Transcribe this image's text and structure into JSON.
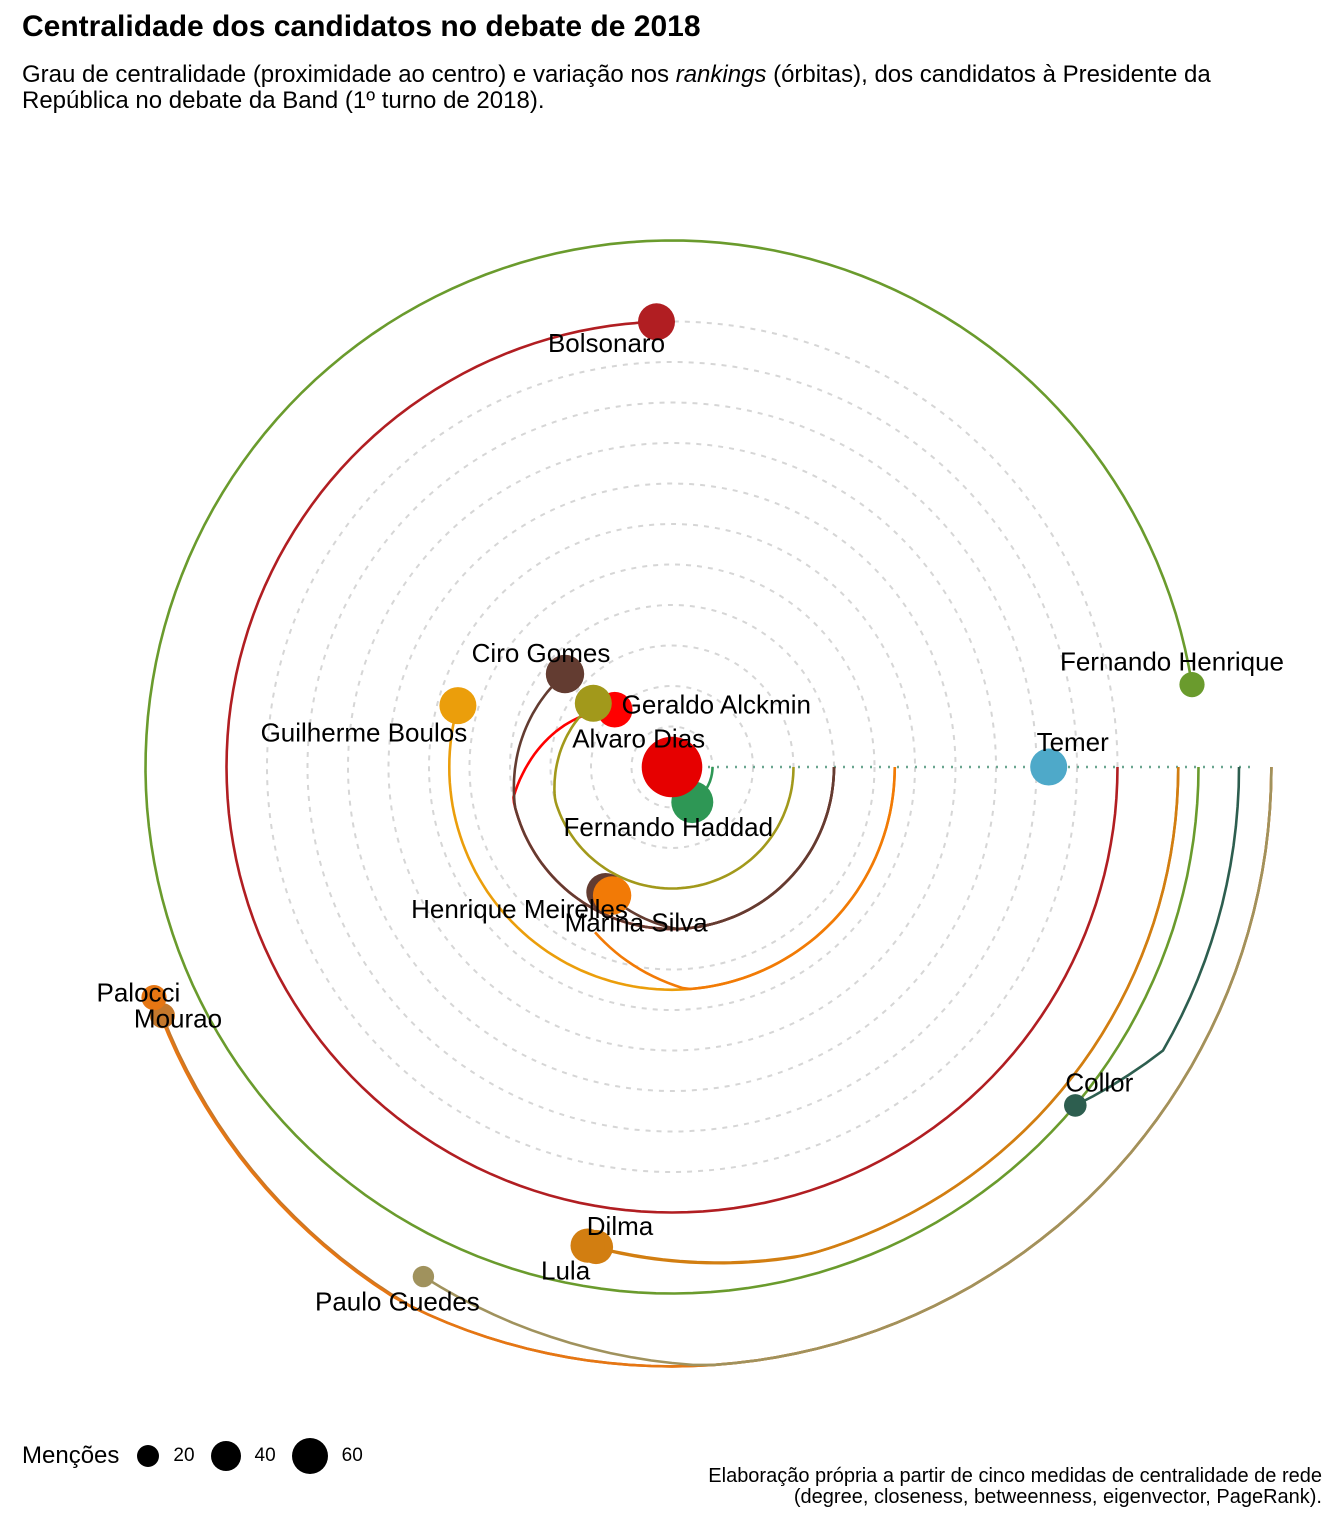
{
  "title": "Centralidade dos candidatos no debate de 2018",
  "subtitle": {
    "part1": "Grau de centralidade (proximidade ao centro) e variação nos ",
    "emph": "rankings",
    "part2": " (órbitas), dos candidatos à Presidente da República no debate da Band (1º turno de 2018)."
  },
  "legend": {
    "title": "Menções",
    "items": [
      {
        "label": "20",
        "value": 20
      },
      {
        "label": "40",
        "value": 40
      },
      {
        "label": "60",
        "value": 60
      }
    ]
  },
  "caption": {
    "line1": "Elaboração própria a partir de cinco medidas de centralidade de rede",
    "line2": "(degree, closeness, betweenness, eigenvector, PageRank)."
  },
  "chart_data": {
    "type": "scatter",
    "coordinate_system": "polar",
    "reference_orbits": [
      1,
      2,
      3,
      4,
      5,
      6,
      7,
      8,
      9,
      10,
      11
    ],
    "reference_style": "dashed grey circles",
    "series": [
      {
        "label": "Alvaro Dias",
        "radius": 2,
        "angle_deg": 135,
        "orbit_start": 2,
        "orbit_end": 4,
        "mentions": 20,
        "color": "#ff0000"
      },
      {
        "label": "Geraldo Alckmin",
        "radius": 2.5,
        "angle_deg": 141,
        "orbit_start": 2.5,
        "orbit_end": 3,
        "mentions": 22,
        "color": "#a2991b"
      },
      {
        "label": "Ciro Gomes",
        "radius": 3.5,
        "angle_deg": 139,
        "orbit_start": 3.5,
        "orbit_end": 4,
        "mentions": 24,
        "color": "#633c31"
      },
      {
        "label": "Guilherme Boulos",
        "radius": 5.5,
        "angle_deg": 164,
        "orbit_start": 5.5,
        "orbit_end": 5.5,
        "mentions": 22,
        "color": "#eb9e0b"
      },
      {
        "label": "Henrique Meirelles",
        "radius": 3.5,
        "angle_deg": 242,
        "orbit_start": 3.5,
        "orbit_end": 4,
        "mentions": 24,
        "color": "#633c31"
      },
      {
        "label": "Marina Silva",
        "radius": 3.5,
        "angle_deg": 245,
        "orbit_start": 4.5,
        "orbit_end": 5.5,
        "mentions": 24,
        "color": "#f27a06"
      },
      {
        "label": "Fernando Haddad",
        "radius": 1,
        "angle_deg": 300,
        "orbit_start": 1,
        "orbit_end": 1,
        "mentions": 30,
        "color": "#2e9755"
      },
      {
        "label": "",
        "radius": 0,
        "angle_deg": 0,
        "orbit_start": 0,
        "orbit_end": 0,
        "mentions": 70,
        "color": "#e60000"
      },
      {
        "label": "Bolsonaro",
        "radius": 11,
        "angle_deg": 92,
        "orbit_start": 11,
        "orbit_end": 11,
        "mentions": 22,
        "color": "#b11e22"
      },
      {
        "label": "Temer",
        "radius": 9.3,
        "angle_deg": 0,
        "orbit_start": 9.3,
        "orbit_end": 9.3,
        "mentions": 22,
        "color": "#4ea9c9"
      },
      {
        "label": "Fernando Henrique",
        "radius": 13,
        "angle_deg": 9,
        "orbit_start": 13,
        "orbit_end": 13,
        "mentions": 8,
        "color": "#6a9b2d"
      },
      {
        "label": "Collor",
        "radius": 13,
        "angle_deg": 320,
        "orbit_start": 13,
        "orbit_end": 14,
        "mentions": 6,
        "color": "#2d5e4f"
      },
      {
        "label": "Dilma",
        "radius": 12,
        "angle_deg": 261,
        "orbit_start": 12,
        "orbit_end": 12.5,
        "mentions": 18,
        "color": "#d27e11"
      },
      {
        "label": "Lula",
        "radius": 12,
        "angle_deg": 260,
        "orbit_start": 12,
        "orbit_end": 12.5,
        "mentions": 18,
        "color": "#d27e11"
      },
      {
        "label": "Palocci",
        "radius": 14,
        "angle_deg": 206,
        "orbit_start": 14,
        "orbit_end": 14.8,
        "mentions": 8,
        "color": "#c4782c"
      },
      {
        "label": "Mourao",
        "radius": 14,
        "angle_deg": 204,
        "orbit_start": 14,
        "orbit_end": 14.8,
        "mentions": 8,
        "color": "#e67613"
      },
      {
        "label": "Paulo Guedes",
        "radius": 14,
        "angle_deg": 244,
        "orbit_start": 14,
        "orbit_end": 14.8,
        "mentions": 5,
        "color": "#a0925d"
      }
    ]
  }
}
